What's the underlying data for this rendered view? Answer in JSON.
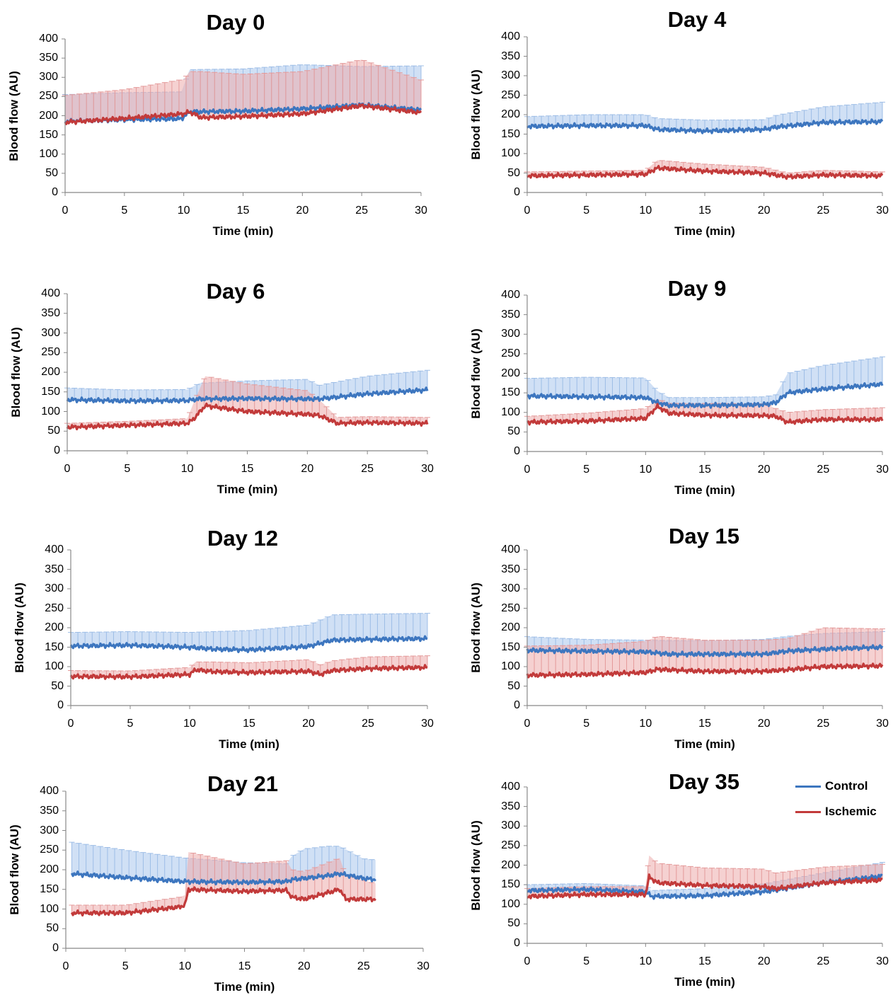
{
  "figure": {
    "xlabel": "Time (min)",
    "ylabel": "Blood flow (AU)",
    "legend": [
      {
        "label": "Control",
        "color": "#3d76bf"
      },
      {
        "label": "Ischemic",
        "color": "#c23a3a"
      }
    ]
  },
  "chart_data": [
    {
      "type": "line",
      "title": "Day 0",
      "xlabel": "Time (min)",
      "ylabel": "Blood flow (AU)",
      "xlim": [
        0,
        30
      ],
      "ylim": [
        0,
        400
      ],
      "x_ticks": [
        "0",
        "5",
        "10",
        "15",
        "20",
        "25",
        "30"
      ],
      "y_ticks": [
        "0",
        "50",
        "100",
        "150",
        "200",
        "250",
        "300",
        "350",
        "400"
      ],
      "series": [
        {
          "name": "Control",
          "color": "#3d76bf",
          "x": [
            0,
            5,
            9.8,
            10.5,
            15,
            20,
            25,
            30
          ],
          "y": [
            185,
            190,
            192,
            210,
            212,
            218,
            228,
            215
          ],
          "sd": [
            70,
            70,
            70,
            110,
            110,
            115,
            100,
            115
          ]
        },
        {
          "name": "Ischemic",
          "color": "#c23a3a",
          "x": [
            0,
            5,
            10,
            10.5,
            11.5,
            15,
            20,
            25,
            30
          ],
          "y": [
            183,
            193,
            205,
            210,
            195,
            198,
            205,
            226,
            208
          ],
          "sd": [
            70,
            75,
            90,
            105,
            120,
            110,
            110,
            120,
            85
          ]
        }
      ]
    },
    {
      "type": "line",
      "title": "Day 4",
      "xlabel": "Time (min)",
      "ylabel": "Blood flow (AU)",
      "xlim": [
        0,
        30
      ],
      "ylim": [
        0,
        400
      ],
      "x_ticks": [
        "0",
        "5",
        "10",
        "15",
        "20",
        "25",
        "30"
      ],
      "y_ticks": [
        "0",
        "50",
        "100",
        "150",
        "200",
        "250",
        "300",
        "350",
        "400"
      ],
      "series": [
        {
          "name": "Control",
          "color": "#3d76bf",
          "x": [
            0,
            5,
            10,
            11,
            15,
            20,
            21,
            25,
            30
          ],
          "y": [
            170,
            172,
            172,
            162,
            158,
            162,
            168,
            180,
            182
          ],
          "sd": [
            25,
            28,
            28,
            28,
            28,
            25,
            30,
            40,
            50
          ]
        },
        {
          "name": "Ischemic",
          "color": "#c23a3a",
          "x": [
            0,
            5,
            10,
            11,
            15,
            20,
            22,
            25,
            30
          ],
          "y": [
            43,
            45,
            47,
            63,
            55,
            50,
            40,
            45,
            43
          ],
          "sd": [
            10,
            10,
            10,
            20,
            18,
            15,
            10,
            12,
            10
          ]
        }
      ]
    },
    {
      "type": "line",
      "title": "Day 6",
      "xlabel": "Time (min)",
      "ylabel": "Blood flow (AU)",
      "xlim": [
        0,
        30
      ],
      "ylim": [
        0,
        400
      ],
      "x_ticks": [
        "0",
        "5",
        "10",
        "15",
        "20",
        "25",
        "30"
      ],
      "y_ticks": [
        "0",
        "50",
        "100",
        "150",
        "200",
        "250",
        "300",
        "350",
        "400"
      ],
      "series": [
        {
          "name": "Control",
          "color": "#3d76bf",
          "x": [
            0,
            5,
            10,
            11,
            15,
            20,
            21,
            25,
            30
          ],
          "y": [
            130,
            127,
            128,
            132,
            133,
            132,
            132,
            145,
            155
          ],
          "sd": [
            30,
            28,
            28,
            40,
            45,
            50,
            35,
            45,
            50
          ]
        },
        {
          "name": "Ischemic",
          "color": "#c23a3a",
          "x": [
            0,
            5,
            10,
            10.5,
            11.5,
            15,
            20,
            21,
            22.5,
            25,
            30
          ],
          "y": [
            60,
            65,
            70,
            80,
            115,
            100,
            93,
            90,
            70,
            72,
            70
          ],
          "sd": [
            10,
            10,
            12,
            40,
            75,
            70,
            60,
            40,
            15,
            15,
            15
          ]
        }
      ]
    },
    {
      "type": "line",
      "title": "Day 9",
      "xlabel": "Time (min)",
      "ylabel": "Blood flow (AU)",
      "xlim": [
        0,
        30
      ],
      "ylim": [
        0,
        400
      ],
      "x_ticks": [
        "0",
        "5",
        "10",
        "15",
        "20",
        "25",
        "30"
      ],
      "y_ticks": [
        "0",
        "50",
        "100",
        "150",
        "200",
        "250",
        "300",
        "350",
        "400"
      ],
      "series": [
        {
          "name": "Control",
          "color": "#3d76bf",
          "x": [
            0,
            5,
            10,
            11,
            12,
            15,
            20,
            21,
            22,
            25,
            30
          ],
          "y": [
            142,
            140,
            138,
            125,
            118,
            118,
            120,
            125,
            150,
            160,
            172
          ],
          "sd": [
            45,
            50,
            50,
            30,
            20,
            20,
            20,
            20,
            50,
            60,
            70
          ]
        },
        {
          "name": "Ischemic",
          "color": "#c23a3a",
          "x": [
            0,
            5,
            10,
            11,
            12,
            15,
            20,
            21,
            22,
            25,
            30
          ],
          "y": [
            75,
            78,
            85,
            115,
            98,
            93,
            92,
            90,
            75,
            82,
            82
          ],
          "sd": [
            15,
            20,
            25,
            20,
            25,
            30,
            30,
            20,
            25,
            25,
            30
          ]
        }
      ]
    },
    {
      "type": "line",
      "title": "Day 12",
      "xlabel": "Time (min)",
      "ylabel": "Blood flow (AU)",
      "xlim": [
        0,
        30
      ],
      "ylim": [
        0,
        400
      ],
      "x_ticks": [
        "0",
        "5",
        "10",
        "15",
        "20",
        "25",
        "30"
      ],
      "y_ticks": [
        "0",
        "50",
        "100",
        "150",
        "200",
        "250",
        "300",
        "350",
        "400"
      ],
      "series": [
        {
          "name": "Control",
          "color": "#3d76bf",
          "x": [
            0,
            5,
            10,
            12,
            15,
            20,
            21,
            22,
            25,
            30
          ],
          "y": [
            153,
            155,
            150,
            145,
            143,
            152,
            160,
            168,
            170,
            172
          ],
          "sd": [
            35,
            35,
            38,
            45,
            50,
            55,
            60,
            65,
            65,
            65
          ]
        },
        {
          "name": "Ischemic",
          "color": "#c23a3a",
          "x": [
            0,
            5,
            10,
            10.5,
            12,
            15,
            20,
            21,
            22,
            25,
            30
          ],
          "y": [
            75,
            74,
            80,
            92,
            87,
            85,
            88,
            80,
            90,
            95,
            98
          ],
          "sd": [
            15,
            15,
            18,
            20,
            25,
            25,
            30,
            25,
            25,
            30,
            30
          ]
        }
      ]
    },
    {
      "type": "line",
      "title": "Day 15",
      "xlabel": "Time (min)",
      "ylabel": "Blood flow (AU)",
      "xlim": [
        0,
        30
      ],
      "ylim": [
        0,
        400
      ],
      "x_ticks": [
        "0",
        "5",
        "10",
        "15",
        "20",
        "25",
        "30"
      ],
      "y_ticks": [
        "0",
        "50",
        "100",
        "150",
        "200",
        "250",
        "300",
        "350",
        "400"
      ],
      "series": [
        {
          "name": "Control",
          "color": "#3d76bf",
          "x": [
            0,
            5,
            10,
            12,
            15,
            20,
            22,
            25,
            30
          ],
          "y": [
            142,
            140,
            138,
            132,
            132,
            132,
            140,
            145,
            150
          ],
          "sd": [
            35,
            30,
            30,
            35,
            35,
            38,
            38,
            40,
            40
          ]
        },
        {
          "name": "Ischemic",
          "color": "#c23a3a",
          "x": [
            0,
            5,
            10,
            11,
            15,
            20,
            22,
            25,
            30
          ],
          "y": [
            78,
            80,
            85,
            93,
            88,
            88,
            92,
            100,
            102
          ],
          "sd": [
            75,
            75,
            80,
            85,
            80,
            80,
            80,
            100,
            95
          ]
        }
      ]
    },
    {
      "type": "line",
      "title": "Day 21",
      "xlabel": "Time (min)",
      "ylabel": "Blood flow (AU)",
      "xlim": [
        0,
        30
      ],
      "ylim": [
        0,
        400
      ],
      "x_ticks": [
        "0",
        "5",
        "10",
        "15",
        "20",
        "25",
        "30"
      ],
      "y_ticks": [
        "0",
        "50",
        "100",
        "150",
        "200",
        "250",
        "300",
        "350",
        "400"
      ],
      "series": [
        {
          "name": "Control",
          "color": "#3d76bf",
          "x": [
            0.5,
            5,
            10,
            15,
            18.5,
            19,
            20,
            22,
            23,
            25,
            26
          ],
          "y": [
            190,
            180,
            170,
            168,
            170,
            175,
            178,
            185,
            190,
            178,
            175
          ],
          "sd": [
            80,
            70,
            60,
            50,
            45,
            60,
            75,
            75,
            70,
            50,
            50
          ]
        },
        {
          "name": "Ischemic",
          "color": "#c23a3a",
          "x": [
            0.5,
            5,
            9.5,
            10,
            10.3,
            15,
            18.5,
            19,
            20,
            23,
            23.5,
            26
          ],
          "y": [
            90,
            90,
            105,
            110,
            150,
            145,
            148,
            130,
            125,
            150,
            125,
            125
          ],
          "sd": [
            20,
            20,
            25,
            25,
            95,
            70,
            75,
            70,
            70,
            80,
            60,
            40
          ]
        }
      ]
    },
    {
      "type": "line",
      "title": "Day 35",
      "xlabel": "Time (min)",
      "ylabel": "Blood flow (AU)",
      "xlim": [
        0,
        30
      ],
      "ylim": [
        0,
        400
      ],
      "x_ticks": [
        "0",
        "5",
        "10",
        "15",
        "20",
        "25",
        "30"
      ],
      "y_ticks": [
        "0",
        "50",
        "100",
        "150",
        "200",
        "250",
        "300",
        "350",
        "400"
      ],
      "series": [
        {
          "name": "Control",
          "color": "#3d76bf",
          "x": [
            0,
            5,
            10,
            10.5,
            15,
            20,
            25,
            30
          ],
          "y": [
            135,
            138,
            132,
            120,
            122,
            132,
            155,
            172
          ],
          "sd": [
            15,
            15,
            15,
            15,
            18,
            20,
            25,
            35
          ]
        },
        {
          "name": "Ischemic",
          "color": "#c23a3a",
          "x": [
            0,
            5,
            10,
            10.3,
            11,
            15,
            20,
            21,
            25,
            30
          ],
          "y": [
            120,
            125,
            125,
            170,
            155,
            148,
            145,
            140,
            155,
            162
          ],
          "sd": [
            20,
            20,
            20,
            55,
            50,
            45,
            45,
            40,
            40,
            40
          ]
        }
      ]
    }
  ]
}
